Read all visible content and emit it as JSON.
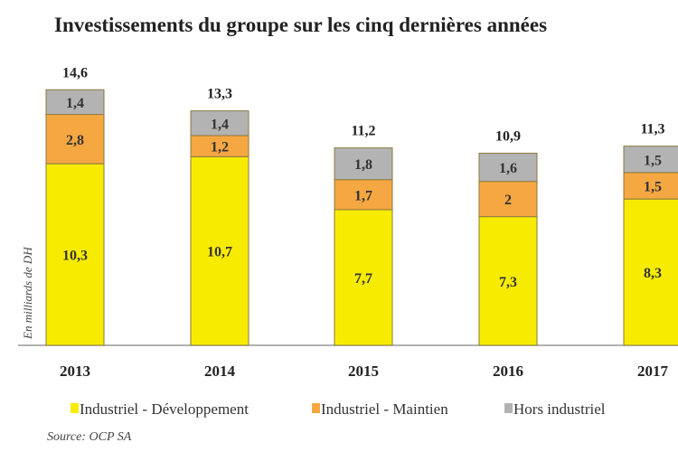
{
  "chart_data": {
    "type": "bar",
    "stacked": true,
    "title": "Investissements du groupe sur les cinq dernières années",
    "ylabel": "En milliards de DH",
    "source": "Source: OCP SA",
    "categories": [
      "2013",
      "2014",
      "2015",
      "2016",
      "2017"
    ],
    "totals": [
      "14,6",
      "13,3",
      "11,2",
      "10,9",
      "11,3"
    ],
    "series": [
      {
        "name": "Industriel - Développement",
        "color": "#f7ec00",
        "values": [
          10.3,
          10.7,
          7.7,
          7.3,
          8.3
        ],
        "labels": [
          "10,3",
          "10,7",
          "7,7",
          "7,3",
          "8,3"
        ]
      },
      {
        "name": "Industriel - Maintien",
        "color": "#f5a742",
        "values": [
          2.8,
          1.2,
          1.7,
          2,
          1.5
        ],
        "labels": [
          "2,8",
          "1,2",
          "1,7",
          "2",
          "1,5"
        ]
      },
      {
        "name": "Hors industriel",
        "color": "#b3b3b3",
        "values": [
          1.4,
          1.4,
          1.8,
          1.6,
          1.5
        ],
        "labels": [
          "1,4",
          "1,4",
          "1,8",
          "1,6",
          "1,5"
        ]
      }
    ],
    "legend": "bottom",
    "grid": false
  }
}
